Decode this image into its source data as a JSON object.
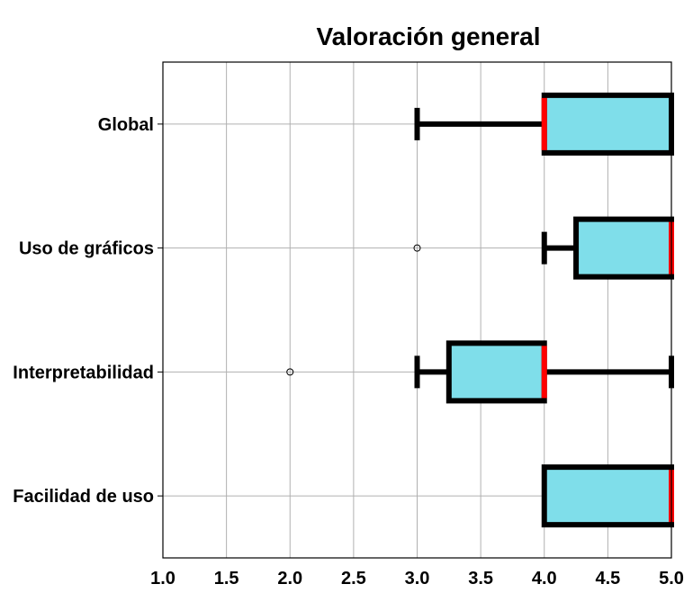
{
  "chart_data": {
    "type": "boxplot",
    "orientation": "horizontal",
    "title": "Valoración general",
    "xlabel": "",
    "ylabel": "",
    "xlim": [
      1.0,
      5.0
    ],
    "x_ticks": [
      "1.0",
      "1.5",
      "2.0",
      "2.5",
      "3.0",
      "3.5",
      "4.0",
      "4.5",
      "5.0"
    ],
    "grid": true,
    "legend": "none",
    "colors": {
      "box_fill": "#7fdeea",
      "box_edge": "#000000",
      "median": "#ff0000",
      "grid": "#b0b0b0"
    },
    "categories": [
      "Global",
      "Uso de gráficos",
      "Interpretabilidad",
      "Facilidad de uso"
    ],
    "boxes": [
      {
        "label": "Global",
        "whisker_low": 3.0,
        "q1": 4.0,
        "median": 4.0,
        "q3": 5.0,
        "whisker_high": 5.0,
        "outliers": []
      },
      {
        "label": "Uso de gráficos",
        "whisker_low": 4.0,
        "q1": 4.25,
        "median": 5.0,
        "q3": 5.0,
        "whisker_high": 5.0,
        "outliers": [
          3.0
        ]
      },
      {
        "label": "Interpretabilidad",
        "whisker_low": 3.0,
        "q1": 3.25,
        "median": 4.0,
        "q3": 4.0,
        "whisker_high": 5.0,
        "outliers": [
          2.0
        ]
      },
      {
        "label": "Facilidad de uso",
        "whisker_low": 4.0,
        "q1": 4.0,
        "median": 5.0,
        "q3": 5.0,
        "whisker_high": 5.0,
        "outliers": []
      }
    ]
  }
}
